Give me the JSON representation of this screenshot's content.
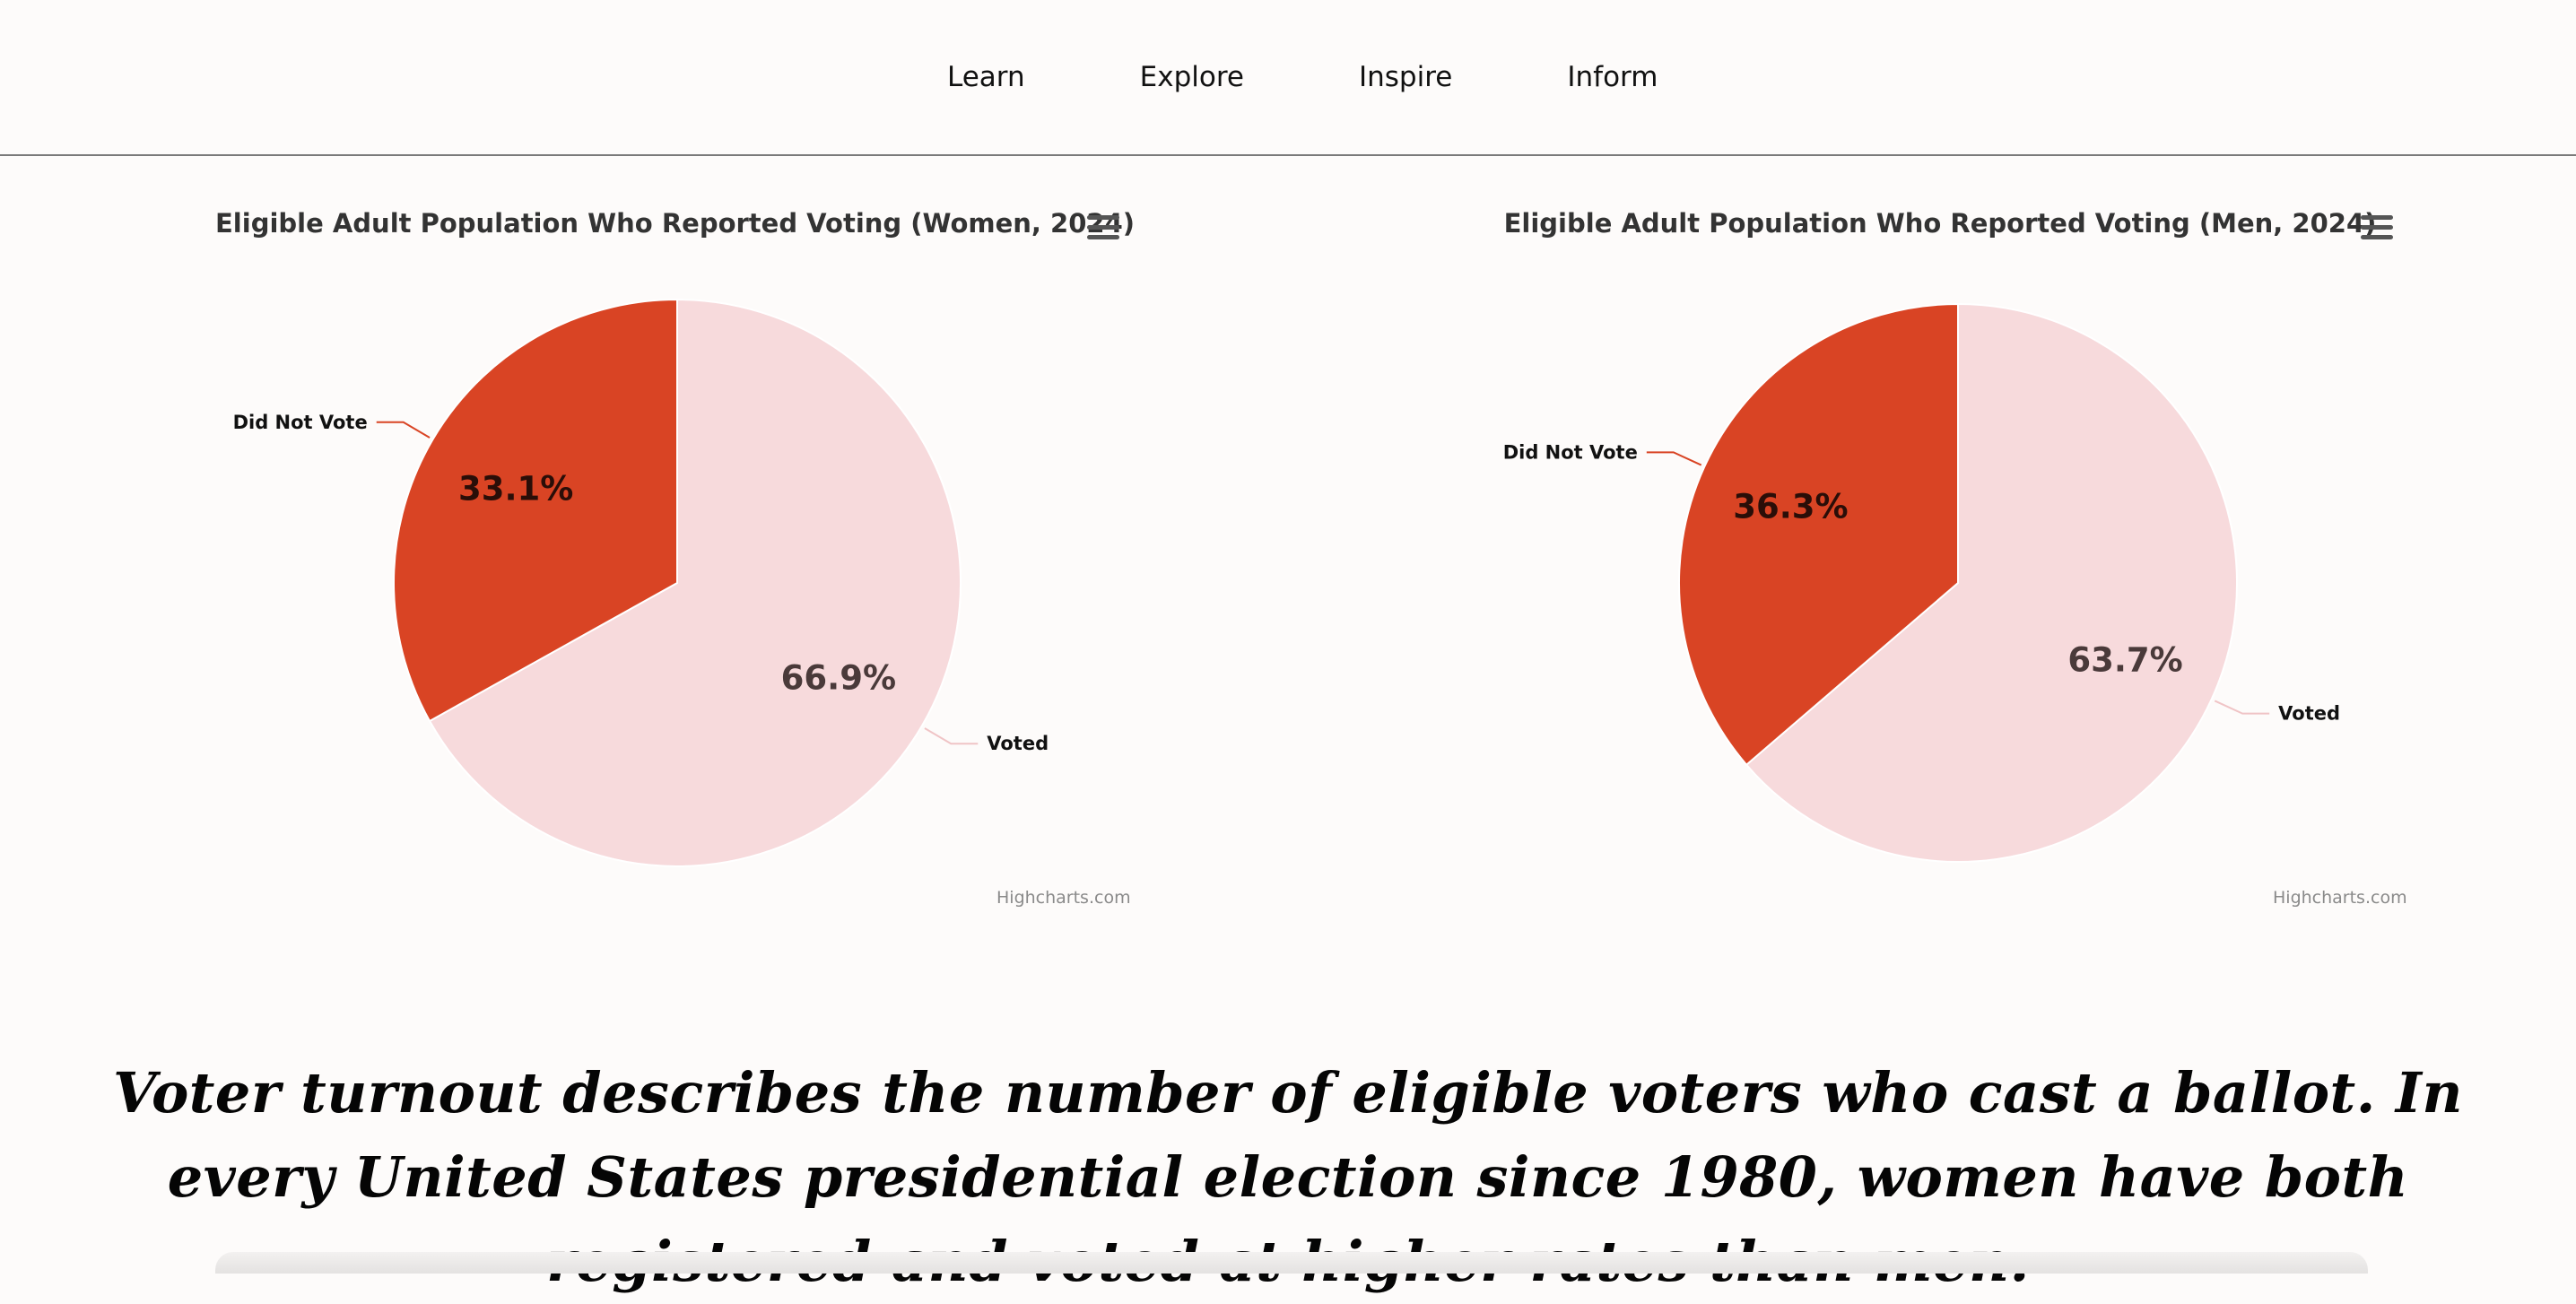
{
  "nav": {
    "items": [
      "Learn",
      "Explore",
      "Inspire",
      "Inform"
    ]
  },
  "colors": {
    "did_not_vote": "#d94424",
    "voted": "#f7dadc",
    "page_bg": "#fdfbfa",
    "connector_did_not_vote": "#d94424",
    "connector_voted": "#f0c4c6"
  },
  "icons": {
    "chart_menu": "hamburger-menu-icon"
  },
  "credit": "Highcharts.com",
  "caption": "Voter turnout describes the number of eligible voters who cast a ballot. In every United States presidential election since 1980, women have both registered and voted at higher rates than men.",
  "chart_data": [
    {
      "type": "pie",
      "title": "Eligible Adult Population Who Reported Voting (Women, 2024)",
      "categories": [
        "Voted",
        "Did Not Vote"
      ],
      "values": [
        66.9,
        33.1
      ],
      "data_labels": [
        "66.9%",
        "33.1%"
      ],
      "legend": "none"
    },
    {
      "type": "pie",
      "title": "Eligible Adult Population Who Reported Voting (Men, 2024)",
      "categories": [
        "Voted",
        "Did Not Vote"
      ],
      "values": [
        63.7,
        36.3
      ],
      "data_labels": [
        "63.7%",
        "36.3%"
      ],
      "legend": "none"
    }
  ]
}
